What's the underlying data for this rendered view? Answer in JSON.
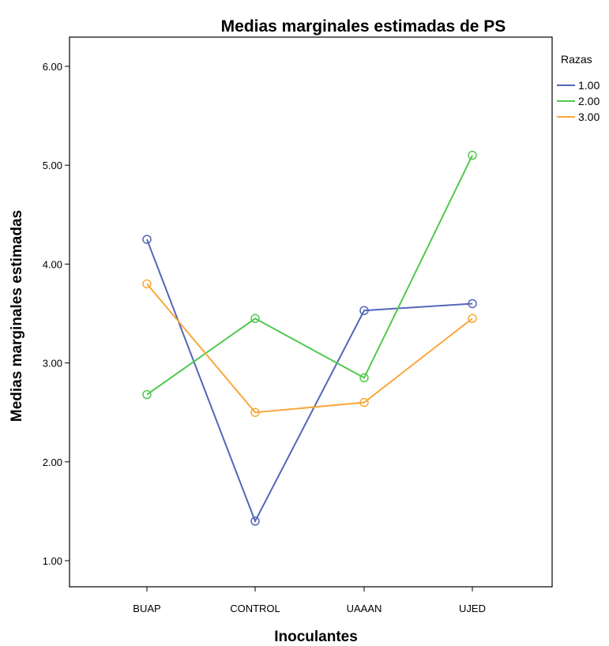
{
  "chart_data": {
    "type": "line",
    "title": "Medias marginales estimadas de PS",
    "xlabel": "Inoculantes",
    "ylabel": "Medias marginales estimadas",
    "categories": [
      "BUAP",
      "CONTROL",
      "UAAAN",
      "UJED"
    ],
    "yticks": [
      "1.00",
      "2.00",
      "3.00",
      "4.00",
      "5.00",
      "6.00"
    ],
    "ylim": [
      0.8,
      6.3
    ],
    "grid": false,
    "legend_title": "Razas",
    "legend_position": "top-right",
    "series": [
      {
        "name": "1.00",
        "color": "#5467B8",
        "values": [
          4.25,
          1.4,
          3.53,
          3.6
        ]
      },
      {
        "name": "2.00",
        "color": "#4FC94F",
        "values": [
          2.68,
          3.45,
          2.85,
          5.1
        ]
      },
      {
        "name": "3.00",
        "color": "#F8A83A",
        "values": [
          3.8,
          2.5,
          2.6,
          3.45
        ]
      }
    ]
  }
}
